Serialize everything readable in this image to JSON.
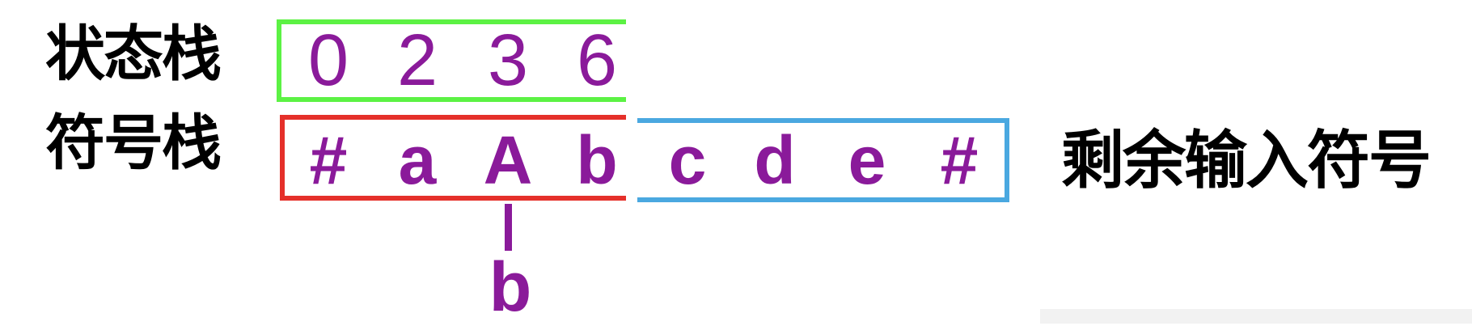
{
  "labels": {
    "state_stack": "状态栈",
    "symbol_stack": "符号栈",
    "remaining_input": "剩余输入符号"
  },
  "state_stack": [
    "0",
    "2",
    "3",
    "6"
  ],
  "symbol_stack": [
    "#",
    "a",
    "A",
    "b"
  ],
  "remaining_input": [
    "c",
    "d",
    "e",
    "#"
  ],
  "reduce_symbol": "b",
  "colors": {
    "state_border": "#5cf244",
    "symbol_border": "#e5302a",
    "input_border": "#4aa8e0",
    "symbol_text": "#8a1a9a",
    "label_text": "#000000"
  }
}
